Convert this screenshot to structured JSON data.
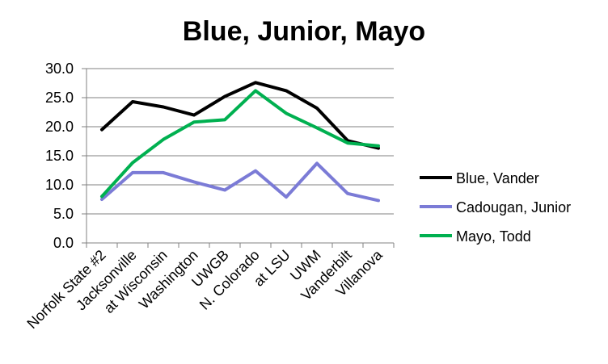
{
  "chart_data": {
    "type": "line",
    "title": "Blue, Junior, Mayo",
    "xlabel": "",
    "ylabel": "",
    "ylim": [
      0,
      30
    ],
    "yticks": [
      "0.0",
      "5.0",
      "10.0",
      "15.0",
      "20.0",
      "25.0",
      "30.0"
    ],
    "grid": true,
    "legend_position": "right",
    "categories": [
      "Norfolk State #2",
      "Jacksonville",
      "at Wisconsin",
      "Washington",
      "UWGB",
      "N. Colorado",
      "at LSU",
      "UWM",
      "Vanderbilt",
      "Villanova"
    ],
    "series": [
      {
        "name": "Blue, Vander",
        "color": "#000000",
        "values": [
          19.5,
          24.3,
          23.4,
          22.0,
          25.2,
          27.6,
          26.2,
          23.2,
          17.6,
          16.3
        ]
      },
      {
        "name": "Cadougan, Junior",
        "color": "#7b7bd6",
        "values": [
          7.5,
          12.1,
          12.1,
          10.5,
          9.1,
          12.4,
          7.9,
          13.7,
          8.5,
          7.3
        ]
      },
      {
        "name": "Mayo, Todd",
        "color": "#00b050",
        "values": [
          8.0,
          13.8,
          17.8,
          20.8,
          21.2,
          26.2,
          22.3,
          19.8,
          17.2,
          16.7
        ]
      }
    ]
  }
}
